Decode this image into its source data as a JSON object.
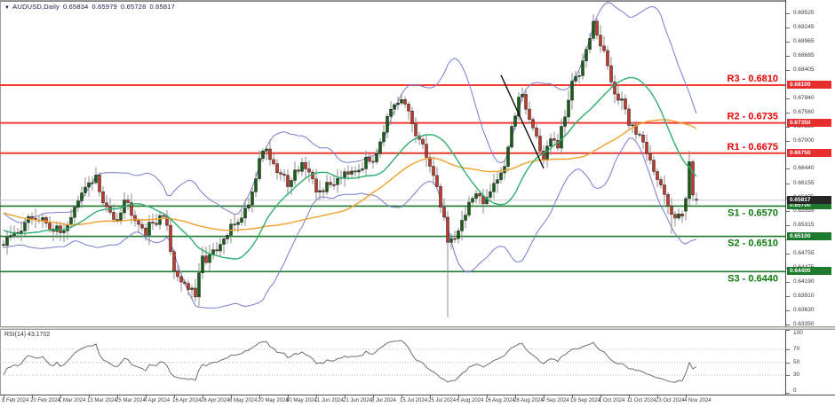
{
  "title_bar": {
    "marker": "▼",
    "symbol": "AUDUSD,Daily",
    "open": "0.65834",
    "high": "0.65979",
    "low": "0.65728",
    "close": "0.65817"
  },
  "colors": {
    "bull_candle": "#175f17",
    "bear_candle": "#c0392b",
    "candle_border": "#1d1d1d",
    "wick": "#8d8d8d",
    "bollinger": "#7a7ad0",
    "sma_fast": "#2fae6e",
    "sma_slow": "#f2a02c",
    "resistance_line": "#f23b30",
    "resistance_text": "#e60000",
    "support_line": "#1d7a2c",
    "support_text": "#0c7a0c",
    "current_price_line": "#c9c9c9",
    "current_tag_bg": "#262626",
    "resistance_tag_bg": "#e62e2e",
    "support_tag_bg": "#1d7a2c",
    "rsi_line": "#6e6e6e",
    "rsi_grid": "#bcbcbc",
    "annotation": "#111111"
  },
  "levels": [
    {
      "name": "R3",
      "label": "R3 - 0.6810",
      "value": 0.681,
      "tag": "0.68100",
      "kind": "resistance"
    },
    {
      "name": "R2",
      "label": "R2 - 0.6735",
      "value": 0.6735,
      "tag": "0.67350",
      "kind": "resistance"
    },
    {
      "name": "R1",
      "label": "R1 - 0.6675",
      "value": 0.6675,
      "tag": "0.66750",
      "kind": "resistance"
    },
    {
      "name": "S1",
      "label": "S1 - 0.6570",
      "value": 0.657,
      "tag": "0.65700",
      "kind": "support"
    },
    {
      "name": "S2",
      "label": "S2 - 0.6510",
      "value": 0.651,
      "tag": "0.65100",
      "kind": "support"
    },
    {
      "name": "S3",
      "label": "S3 - 0.6440",
      "value": 0.644,
      "tag": "0.64400",
      "kind": "support"
    }
  ],
  "current_price": {
    "value": 0.65817,
    "tag": "0.65817"
  },
  "y_axis": {
    "price_top": 0.6979,
    "price_bottom": 0.63315,
    "ticks": [
      "0.69525",
      "0.69245",
      "0.68965",
      "0.68685",
      "0.68405",
      "0.67840",
      "0.67560",
      "0.67280",
      "0.67000",
      "0.66440",
      "0.66155",
      "0.65875",
      "0.65595",
      "0.65315",
      "0.65035",
      "0.64755",
      "0.64475",
      "0.64190",
      "0.63910",
      "0.63630",
      "0.63350"
    ]
  },
  "x_axis": {
    "labels": [
      "8 Feb 2024",
      "20 Feb 2024",
      "1 Mar 2024",
      "13 Mar 2024",
      "25 Mar 2024",
      "4 Apr 2024",
      "16 Apr 2024",
      "26 Apr 2024",
      "8 May 2024",
      "20 May 2024",
      "30 May 2024",
      "11 Jun 2024",
      "21 Jun 2024",
      "3 Jul 2024",
      "15 Jul 2024",
      "25 Jul 2024",
      "6 Aug 2024",
      "16 Aug 2024",
      "28 Aug 2024",
      "9 Sep 2024",
      "19 Sep 2024",
      "1 Oct 2024",
      "11 Oct 2024",
      "23 Oct 2024",
      "4 Nov 2024"
    ]
  },
  "rsi_panel": {
    "label": "RSI(14) 43.1702",
    "period": 14,
    "last_value": 43.1702,
    "scale_labels": [
      "100",
      "70",
      "50",
      "30",
      "0"
    ],
    "scale_values": [
      100,
      70,
      50,
      30,
      0
    ],
    "grid_values": [
      70,
      50,
      30
    ]
  },
  "chart_data": {
    "type": "candlestick",
    "title": "AUDUSD, Daily",
    "ylim": [
      0.63315,
      0.6979
    ],
    "x_tick_labels": [
      "8 Feb 2024",
      "20 Feb 2024",
      "1 Mar 2024",
      "13 Mar 2024",
      "25 Mar 2024",
      "4 Apr 2024",
      "16 Apr 2024",
      "26 Apr 2024",
      "8 May 2024",
      "20 May 2024",
      "30 May 2024",
      "11 Jun 2024",
      "21 Jun 2024",
      "3 Jul 2024",
      "15 Jul 2024",
      "25 Jul 2024",
      "6 Aug 2024",
      "16 Aug 2024",
      "28 Aug 2024",
      "9 Sep 2024",
      "19 Sep 2024",
      "1 Oct 2024",
      "11 Oct 2024",
      "23 Oct 2024",
      "4 Nov 2024"
    ],
    "candle_count": 196,
    "candles_per_tick": 8,
    "last_ohlc": {
      "open": 0.65834,
      "high": 0.65979,
      "low": 0.65728,
      "close": 0.65817
    },
    "close_anchors": [
      [
        0,
        0.6495
      ],
      [
        4,
        0.6522
      ],
      [
        8,
        0.6548
      ],
      [
        12,
        0.6538
      ],
      [
        16,
        0.6515
      ],
      [
        20,
        0.6562
      ],
      [
        24,
        0.6618
      ],
      [
        26,
        0.6628
      ],
      [
        28,
        0.657
      ],
      [
        32,
        0.6548
      ],
      [
        34,
        0.6585
      ],
      [
        36,
        0.6562
      ],
      [
        40,
        0.652
      ],
      [
        44,
        0.6552
      ],
      [
        46,
        0.6532
      ],
      [
        48,
        0.6442
      ],
      [
        52,
        0.6408
      ],
      [
        54,
        0.639
      ],
      [
        56,
        0.6465
      ],
      [
        60,
        0.6478
      ],
      [
        64,
        0.6525
      ],
      [
        68,
        0.6562
      ],
      [
        70,
        0.6598
      ],
      [
        72,
        0.6668
      ],
      [
        74,
        0.6688
      ],
      [
        76,
        0.6645
      ],
      [
        80,
        0.6618
      ],
      [
        84,
        0.6658
      ],
      [
        88,
        0.6598
      ],
      [
        92,
        0.6612
      ],
      [
        96,
        0.6642
      ],
      [
        100,
        0.6648
      ],
      [
        104,
        0.6665
      ],
      [
        108,
        0.6742
      ],
      [
        110,
        0.6762
      ],
      [
        112,
        0.6778
      ],
      [
        114,
        0.6758
      ],
      [
        116,
        0.6712
      ],
      [
        118,
        0.6682
      ],
      [
        120,
        0.6658
      ],
      [
        122,
        0.6602
      ],
      [
        124,
        0.6548
      ],
      [
        125,
        0.6498
      ],
      [
        127,
        0.6512
      ],
      [
        129,
        0.6538
      ],
      [
        131,
        0.6578
      ],
      [
        133,
        0.6588
      ],
      [
        135,
        0.6572
      ],
      [
        137,
        0.6608
      ],
      [
        139,
        0.6628
      ],
      [
        141,
        0.6652
      ],
      [
        143,
        0.6718
      ],
      [
        145,
        0.6788
      ],
      [
        146,
        0.6798
      ],
      [
        148,
        0.6742
      ],
      [
        150,
        0.6708
      ],
      [
        152,
        0.6662
      ],
      [
        154,
        0.6702
      ],
      [
        156,
        0.6688
      ],
      [
        158,
        0.6748
      ],
      [
        160,
        0.6812
      ],
      [
        162,
        0.6838
      ],
      [
        164,
        0.6892
      ],
      [
        166,
        0.6932
      ],
      [
        168,
        0.6888
      ],
      [
        170,
        0.6852
      ],
      [
        172,
        0.6792
      ],
      [
        174,
        0.6772
      ],
      [
        176,
        0.6738
      ],
      [
        178,
        0.6718
      ],
      [
        180,
        0.6698
      ],
      [
        182,
        0.6668
      ],
      [
        184,
        0.6622
      ],
      [
        186,
        0.6588
      ],
      [
        188,
        0.6552
      ],
      [
        190,
        0.6562
      ],
      [
        191,
        0.6558
      ],
      [
        195,
        0.6582
      ]
    ],
    "wick_overrides": [
      [
        125,
        "low",
        0.635
      ],
      [
        188,
        "low",
        0.6515
      ]
    ],
    "final_candles": [
      [
        0.656,
        0.659,
        0.6542,
        0.6585
      ],
      [
        0.6585,
        0.668,
        0.657,
        0.6658
      ],
      [
        0.6658,
        0.6663,
        0.658,
        0.6592
      ],
      [
        0.65834,
        0.65979,
        0.65728,
        0.65817
      ]
    ],
    "overlays": {
      "bollinger": {
        "period": 20,
        "stddev": 2
      },
      "sma_fast_period": 20,
      "sma_slow_period": 50,
      "rsi_period": 14
    },
    "support_resistance": {
      "R3": 0.681,
      "R2": 0.6735,
      "R1": 0.6675,
      "S1": 0.657,
      "S2": 0.651,
      "S3": 0.644
    },
    "trendline_annotation": {
      "from_index": 140,
      "from_price": 0.683,
      "to_index": 152,
      "to_price": 0.6645
    }
  }
}
